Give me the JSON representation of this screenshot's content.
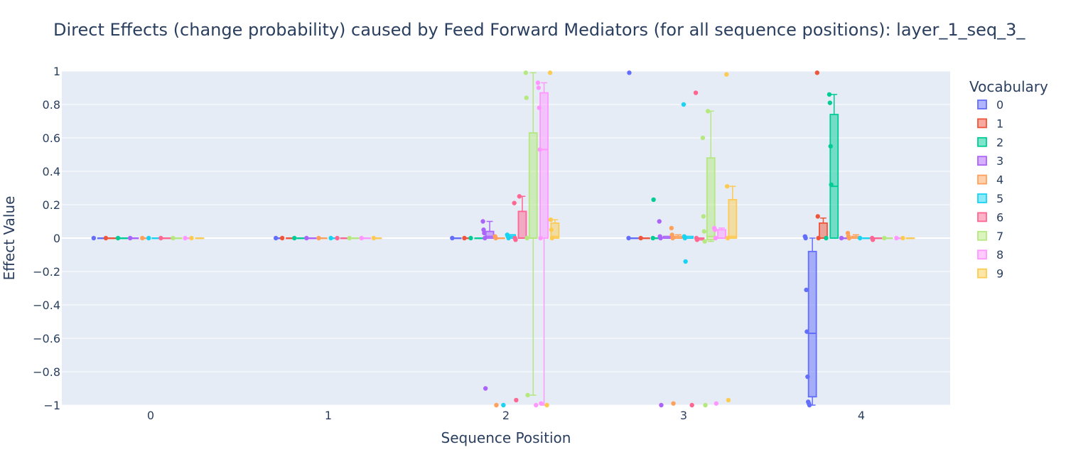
{
  "chart_data": {
    "type": "box",
    "title": "Direct Effects (change probability) caused by Feed Forward Mediators (for all sequence positions): layer_1_seq_3_",
    "xlabel": "Sequence Position",
    "ylabel": "Effect Value",
    "ylim": [
      -1,
      1
    ],
    "y_ticks": [
      1,
      0.8,
      0.6,
      0.4,
      0.2,
      0,
      -0.2,
      -0.4,
      -0.6,
      -0.8,
      -1
    ],
    "y_tick_labels": [
      "1",
      "0.8",
      "0.6",
      "0.4",
      "0.2",
      "0",
      "−0.2",
      "−0.4",
      "−0.6",
      "−0.8",
      "−1"
    ],
    "categories": [
      "0",
      "1",
      "2",
      "3",
      "4"
    ],
    "legend_title": "Vocabulary",
    "legend_placement": "right",
    "grid": true,
    "series": [
      {
        "name": "0",
        "color": "#636efa",
        "boxes": [
          {
            "q1": 0,
            "median": 0,
            "q3": 0,
            "lower": 0,
            "upper": 0,
            "points": [
              0
            ]
          },
          {
            "q1": 0,
            "median": 0,
            "q3": 0,
            "lower": 0,
            "upper": 0,
            "points": [
              0
            ]
          },
          {
            "q1": 0,
            "median": 0,
            "q3": 0,
            "lower": 0,
            "upper": 0,
            "points": [
              0
            ]
          },
          {
            "q1": 0,
            "median": 0,
            "q3": 0,
            "lower": 0,
            "upper": 0,
            "points": [
              0,
              0.99
            ]
          },
          {
            "q1": -0.95,
            "median": -0.57,
            "q3": -0.08,
            "lower": -1,
            "upper": 0,
            "points": [
              0.01,
              0,
              -0.31,
              -0.56,
              -0.83,
              -0.98,
              -0.99,
              -1
            ]
          }
        ]
      },
      {
        "name": "1",
        "color": "#ef553b",
        "boxes": [
          {
            "q1": 0,
            "median": 0,
            "q3": 0,
            "lower": 0,
            "upper": 0,
            "points": [
              0
            ]
          },
          {
            "q1": 0,
            "median": 0,
            "q3": 0,
            "lower": 0,
            "upper": 0,
            "points": [
              0
            ]
          },
          {
            "q1": 0,
            "median": 0,
            "q3": 0,
            "lower": 0,
            "upper": 0,
            "points": [
              0
            ]
          },
          {
            "q1": 0,
            "median": 0,
            "q3": 0,
            "lower": 0,
            "upper": 0,
            "points": [
              0
            ]
          },
          {
            "q1": 0,
            "median": 0,
            "q3": 0.09,
            "lower": 0,
            "upper": 0.12,
            "points": [
              0.99,
              0.13,
              0
            ]
          }
        ]
      },
      {
        "name": "2",
        "color": "#00cc96",
        "boxes": [
          {
            "q1": 0,
            "median": 0,
            "q3": 0,
            "lower": 0,
            "upper": 0,
            "points": [
              0
            ]
          },
          {
            "q1": 0,
            "median": 0,
            "q3": 0,
            "lower": 0,
            "upper": 0,
            "points": [
              0
            ]
          },
          {
            "q1": 0,
            "median": 0,
            "q3": 0,
            "lower": 0,
            "upper": 0,
            "points": [
              0
            ]
          },
          {
            "q1": 0,
            "median": 0,
            "q3": 0,
            "lower": 0,
            "upper": 0,
            "points": [
              0,
              0.23
            ]
          },
          {
            "q1": 0,
            "median": 0.31,
            "q3": 0.74,
            "lower": 0,
            "upper": 0.86,
            "points": [
              0.86,
              0.81,
              0.55,
              0.32,
              0
            ]
          }
        ]
      },
      {
        "name": "3",
        "color": "#ab63fa",
        "boxes": [
          {
            "q1": 0,
            "median": 0,
            "q3": 0,
            "lower": 0,
            "upper": 0,
            "points": [
              0
            ]
          },
          {
            "q1": 0,
            "median": 0,
            "q3": 0,
            "lower": 0,
            "upper": 0,
            "points": [
              0
            ]
          },
          {
            "q1": 0,
            "median": 0.01,
            "q3": 0.04,
            "lower": 0,
            "upper": 0.1,
            "points": [
              0.1,
              0.05,
              0.03,
              0,
              -0.9
            ]
          },
          {
            "q1": 0,
            "median": 0,
            "q3": 0.01,
            "lower": 0,
            "upper": 0.01,
            "points": [
              0.1,
              0.01,
              0,
              -1
            ]
          },
          {
            "q1": 0,
            "median": 0,
            "q3": 0,
            "lower": 0,
            "upper": 0,
            "points": [
              0
            ]
          }
        ]
      },
      {
        "name": "4",
        "color": "#ffa15a",
        "boxes": [
          {
            "q1": 0,
            "median": 0,
            "q3": 0,
            "lower": 0,
            "upper": 0,
            "points": [
              0
            ]
          },
          {
            "q1": 0,
            "median": 0,
            "q3": 0,
            "lower": 0,
            "upper": 0,
            "points": [
              0
            ]
          },
          {
            "q1": 0,
            "median": 0,
            "q3": 0,
            "lower": 0,
            "upper": 0,
            "points": [
              0.01,
              0,
              -1
            ]
          },
          {
            "q1": 0,
            "median": 0,
            "q3": 0.01,
            "lower": 0,
            "upper": 0.02,
            "points": [
              0.06,
              0.02,
              0,
              -0.99
            ]
          },
          {
            "q1": 0,
            "median": 0,
            "q3": 0.01,
            "lower": 0,
            "upper": 0.02,
            "points": [
              0.03,
              0.01,
              0
            ]
          }
        ]
      },
      {
        "name": "5",
        "color": "#19d3f3",
        "boxes": [
          {
            "q1": 0,
            "median": 0,
            "q3": 0,
            "lower": 0,
            "upper": 0,
            "points": [
              0
            ]
          },
          {
            "q1": 0,
            "median": 0,
            "q3": 0,
            "lower": 0,
            "upper": 0,
            "points": [
              0
            ]
          },
          {
            "q1": 0,
            "median": 0.01,
            "q3": 0.02,
            "lower": 0,
            "upper": 0.02,
            "points": [
              0.02,
              0.01,
              0,
              -1
            ]
          },
          {
            "q1": 0,
            "median": 0,
            "q3": 0.01,
            "lower": 0,
            "upper": 0.01,
            "points": [
              0.8,
              0.01,
              0,
              -0.14
            ]
          },
          {
            "q1": 0,
            "median": 0,
            "q3": 0,
            "lower": 0,
            "upper": 0,
            "points": [
              0
            ]
          }
        ]
      },
      {
        "name": "6",
        "color": "#ff6692",
        "boxes": [
          {
            "q1": 0,
            "median": 0,
            "q3": 0,
            "lower": 0,
            "upper": 0,
            "points": [
              0
            ]
          },
          {
            "q1": 0,
            "median": 0,
            "q3": 0,
            "lower": 0,
            "upper": 0,
            "points": [
              0
            ]
          },
          {
            "q1": 0,
            "median": 0,
            "q3": 0.16,
            "lower": 0,
            "upper": 0.25,
            "points": [
              0.25,
              0.21,
              0,
              -0.01,
              -0.97
            ]
          },
          {
            "q1": -0.01,
            "median": 0,
            "q3": 0,
            "lower": -0.01,
            "upper": 0,
            "points": [
              0.87,
              0,
              -0.01,
              -1
            ]
          },
          {
            "q1": 0,
            "median": 0,
            "q3": 0,
            "lower": 0,
            "upper": 0,
            "points": [
              0,
              -0.01
            ]
          }
        ]
      },
      {
        "name": "7",
        "color": "#b6e880",
        "boxes": [
          {
            "q1": 0,
            "median": 0,
            "q3": 0,
            "lower": 0,
            "upper": 0,
            "points": [
              0
            ]
          },
          {
            "q1": 0,
            "median": 0,
            "q3": 0,
            "lower": 0,
            "upper": 0,
            "points": [
              0
            ]
          },
          {
            "q1": 0,
            "median": 0,
            "q3": 0.63,
            "lower": -0.94,
            "upper": 0.99,
            "points": [
              0.99,
              0.84,
              0,
              -0.94
            ]
          },
          {
            "q1": -0.01,
            "median": 0.01,
            "q3": 0.48,
            "lower": -0.02,
            "upper": 0.76,
            "points": [
              0.76,
              0.6,
              0.13,
              0.04,
              -0.02,
              -1
            ]
          },
          {
            "q1": 0,
            "median": 0,
            "q3": 0,
            "lower": 0,
            "upper": 0,
            "points": [
              0
            ]
          }
        ]
      },
      {
        "name": "8",
        "color": "#ff97ff",
        "boxes": [
          {
            "q1": 0,
            "median": 0,
            "q3": 0,
            "lower": 0,
            "upper": 0,
            "points": [
              0
            ]
          },
          {
            "q1": 0,
            "median": 0,
            "q3": 0,
            "lower": 0,
            "upper": 0,
            "points": [
              0
            ]
          },
          {
            "q1": 0,
            "median": 0.53,
            "q3": 0.87,
            "lower": -1,
            "upper": 0.93,
            "points": [
              0.93,
              0.9,
              0.78,
              0.53,
              0,
              -0.99,
              -1
            ]
          },
          {
            "q1": 0,
            "median": 0,
            "q3": 0.05,
            "lower": 0,
            "upper": 0.06,
            "points": [
              0.06,
              0.05,
              0,
              -0.99
            ]
          },
          {
            "q1": 0,
            "median": 0,
            "q3": 0,
            "lower": 0,
            "upper": 0,
            "points": [
              0
            ]
          }
        ]
      },
      {
        "name": "9",
        "color": "#fecb52",
        "boxes": [
          {
            "q1": 0,
            "median": 0,
            "q3": 0,
            "lower": 0,
            "upper": 0,
            "points": [
              0
            ]
          },
          {
            "q1": 0,
            "median": 0,
            "q3": 0,
            "lower": 0,
            "upper": 0,
            "points": [
              0
            ]
          },
          {
            "q1": 0,
            "median": 0.01,
            "q3": 0.09,
            "lower": 0,
            "upper": 0.11,
            "points": [
              0.99,
              0.11,
              0.05,
              0,
              -1
            ]
          },
          {
            "q1": 0,
            "median": 0.01,
            "q3": 0.23,
            "lower": 0,
            "upper": 0.31,
            "points": [
              0.98,
              0.31,
              0,
              -0.97
            ]
          },
          {
            "q1": 0,
            "median": 0,
            "q3": 0,
            "lower": 0,
            "upper": 0,
            "points": [
              0
            ]
          }
        ]
      }
    ]
  }
}
